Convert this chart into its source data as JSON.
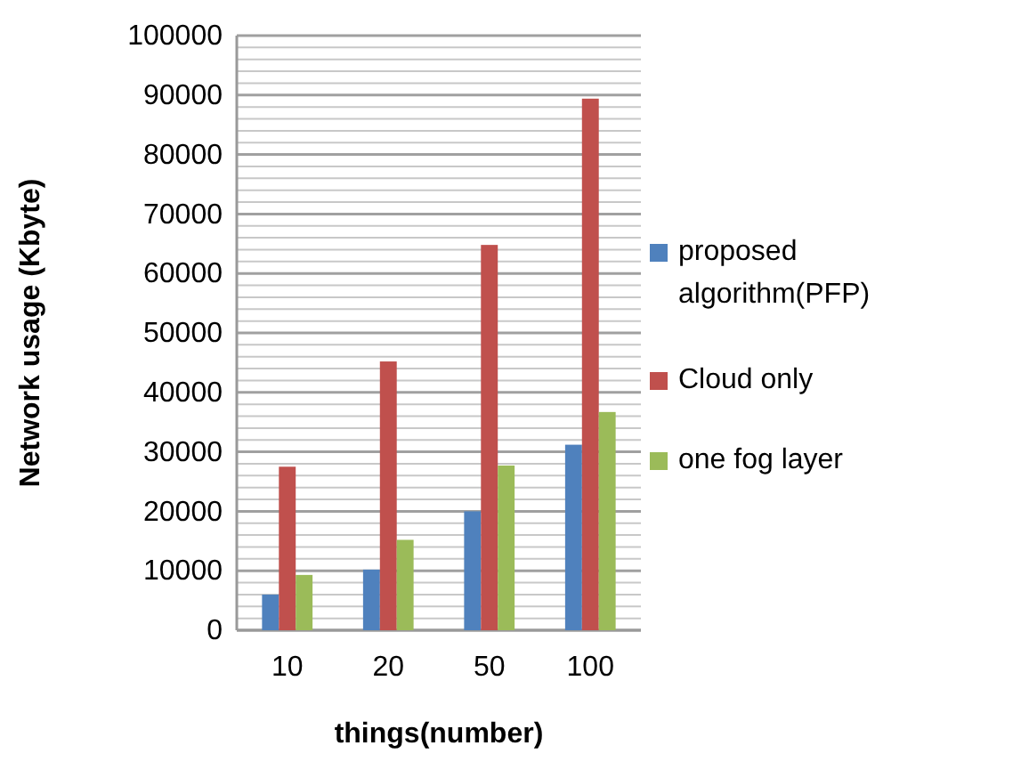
{
  "chart_data": {
    "type": "bar",
    "xlabel": "things(number)",
    "ylabel": "Network usage (Kbyte)",
    "categories": [
      "10",
      "20",
      "50",
      "100"
    ],
    "series": [
      {
        "name": "proposed algorithm(PFP)",
        "color": "#4f81bd",
        "values": [
          6000,
          10200,
          20000,
          31200
        ]
      },
      {
        "name": "Cloud only",
        "color": "#c0504d",
        "values": [
          27500,
          45200,
          64800,
          89400
        ]
      },
      {
        "name": "one fog layer",
        "color": "#9bbb59",
        "values": [
          9300,
          15200,
          27700,
          36700
        ]
      }
    ],
    "ylim": [
      0,
      100000
    ],
    "yticks": [
      0,
      {
        "value": 2000,
        "label": null
      },
      {
        "value": 4000,
        "label": null
      },
      {
        "value": 6000,
        "label": null
      },
      {
        "value": 8000,
        "label": null
      },
      10000,
      {
        "value": 12000,
        "label": null
      },
      {
        "value": 14000,
        "label": null
      },
      {
        "value": 16000,
        "label": null
      },
      {
        "value": 18000,
        "label": null
      },
      20000,
      {
        "value": 22000,
        "label": null
      },
      {
        "value": 24000,
        "label": null
      },
      {
        "value": 26000,
        "label": null
      },
      {
        "value": 28000,
        "label": null
      },
      30000,
      {
        "value": 32000,
        "label": null
      },
      {
        "value": 34000,
        "label": null
      },
      {
        "value": 36000,
        "label": null
      },
      {
        "value": 38000,
        "label": null
      },
      40000,
      {
        "value": 42000,
        "label": null
      },
      {
        "value": 44000,
        "label": null
      },
      {
        "value": 46000,
        "label": null
      },
      {
        "value": 48000,
        "label": null
      },
      50000,
      {
        "value": 52000,
        "label": null
      },
      {
        "value": 54000,
        "label": null
      },
      {
        "value": 56000,
        "label": null
      },
      {
        "value": 58000,
        "label": null
      },
      60000,
      {
        "value": 62000,
        "label": null
      },
      {
        "value": 64000,
        "label": null
      },
      {
        "value": 66000,
        "label": null
      },
      {
        "value": 68000,
        "label": null
      },
      70000,
      {
        "value": 72000,
        "label": null
      },
      {
        "value": 74000,
        "label": null
      },
      {
        "value": 76000,
        "label": null
      },
      {
        "value": 78000,
        "label": null
      },
      80000,
      {
        "value": 82000,
        "label": null
      },
      {
        "value": 84000,
        "label": null
      },
      {
        "value": 86000,
        "label": null
      },
      {
        "value": 88000,
        "label": null
      },
      90000,
      {
        "value": 92000,
        "label": null
      },
      {
        "value": 94000,
        "label": null
      },
      {
        "value": 96000,
        "label": null
      },
      {
        "value": 98000,
        "label": null
      },
      100000
    ],
    "grid": "y",
    "legend": "right"
  }
}
